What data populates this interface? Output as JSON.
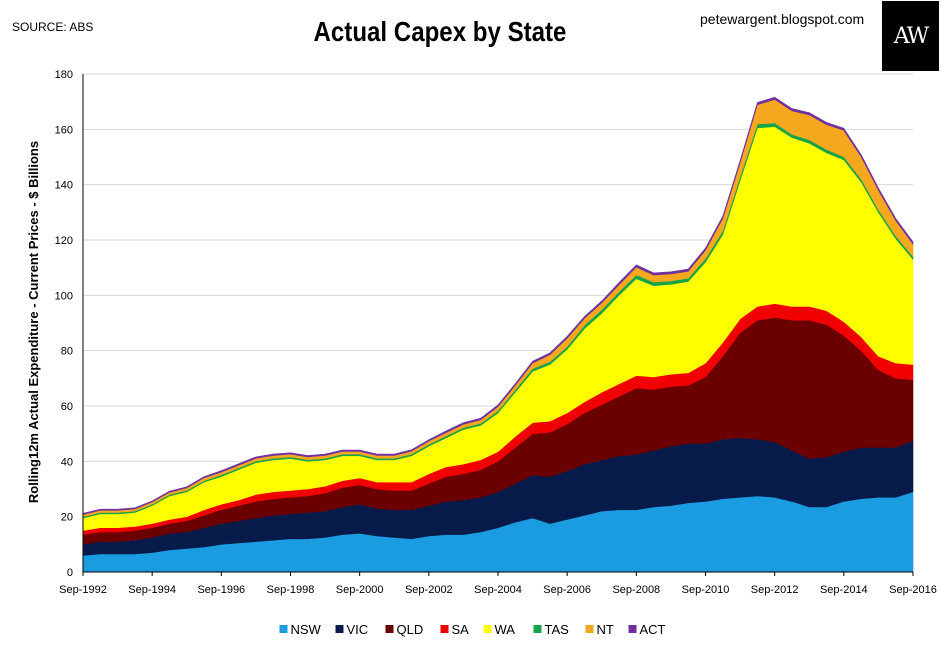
{
  "header": {
    "source": "SOURCE: ABS",
    "title": "Actual Capex by State",
    "blog": "petewargent.blogspot.com",
    "logo_text": "AW"
  },
  "chart_data": {
    "type": "area",
    "stacked": true,
    "title": "Actual Capex by State",
    "xlabel": "",
    "ylabel": "Rolling12m Actual Expenditure - Current Prices - $ Billions",
    "ylim": [
      0,
      180
    ],
    "yticks": [
      0,
      20,
      40,
      60,
      80,
      100,
      120,
      140,
      160,
      180
    ],
    "grid": true,
    "legend_position": "bottom",
    "x": [
      1992.67,
      1993.17,
      1993.67,
      1994.17,
      1994.67,
      1995.17,
      1995.67,
      1996.17,
      1996.67,
      1997.17,
      1997.67,
      1998.17,
      1998.67,
      1999.17,
      1999.67,
      2000.17,
      2000.67,
      2001.17,
      2001.67,
      2002.17,
      2002.67,
      2003.17,
      2003.67,
      2004.17,
      2004.67,
      2005.17,
      2005.67,
      2006.17,
      2006.67,
      2007.17,
      2007.67,
      2008.17,
      2008.67,
      2009.17,
      2009.67,
      2010.17,
      2010.67,
      2011.17,
      2011.67,
      2012.17,
      2012.67,
      2013.17,
      2013.67,
      2014.17,
      2014.67,
      2015.17,
      2015.67,
      2016.17,
      2016.67
    ],
    "x_ticks": [
      "Sep-1992",
      "Sep-1994",
      "Sep-1996",
      "Sep-1998",
      "Sep-2000",
      "Sep-2002",
      "Sep-2004",
      "Sep-2006",
      "Sep-2008",
      "Sep-2010",
      "Sep-2012",
      "Sep-2014",
      "Sep-2016"
    ],
    "series": [
      {
        "name": "NSW",
        "color": "#1B9BE0",
        "values": [
          6,
          6.5,
          6.5,
          6.5,
          7,
          8,
          8.5,
          9,
          10,
          10.5,
          11,
          11.5,
          12,
          12,
          12.5,
          13.5,
          14,
          13,
          12.5,
          12,
          13,
          13.5,
          13.5,
          14.5,
          16,
          18,
          19.5,
          17.5,
          19,
          20.5,
          22,
          22.5,
          22.5,
          23.5,
          24,
          25,
          25.5,
          26.5,
          27,
          27.5,
          27,
          25.5,
          23.5,
          23.5,
          25.5,
          26.5,
          27,
          27,
          29
        ]
      },
      {
        "name": "VIC",
        "color": "#071B4A",
        "values": [
          4,
          4.5,
          4.5,
          5,
          5.5,
          6,
          6,
          7,
          7.5,
          8,
          8.5,
          9,
          9,
          9.5,
          9.5,
          10,
          10.5,
          10,
          10,
          10.5,
          11,
          12,
          12.5,
          12.5,
          13,
          14,
          15.5,
          17,
          17.5,
          18.5,
          18.5,
          19.5,
          20,
          20.5,
          21.5,
          21.5,
          21,
          21.5,
          21.5,
          20.5,
          20,
          18.5,
          17.5,
          18,
          18,
          18.5,
          18,
          18,
          18.5
        ]
      },
      {
        "name": "QLD",
        "color": "#6B0000",
        "values": [
          3.5,
          3.5,
          3.5,
          3.5,
          3.5,
          3.5,
          4,
          4.5,
          5,
          5.5,
          6,
          6,
          6,
          6,
          6.5,
          7,
          7,
          7,
          7,
          7,
          8,
          9,
          9.5,
          10,
          11,
          13,
          15,
          16,
          17,
          18.5,
          20,
          21.5,
          24,
          22,
          21.5,
          21,
          24,
          30,
          38,
          43,
          45,
          47,
          50,
          48,
          42,
          35,
          28,
          25,
          22
        ]
      },
      {
        "name": "SA",
        "color": "#F00000",
        "values": [
          1.5,
          1.5,
          1.5,
          1.5,
          1.5,
          1.5,
          1.5,
          2,
          2,
          2,
          2.5,
          2.5,
          2.5,
          2.5,
          2.5,
          2.5,
          2.5,
          2.5,
          3,
          3,
          3.5,
          3.5,
          3.5,
          3.5,
          3.5,
          4,
          4,
          4,
          4,
          4,
          4.5,
          4.5,
          4.5,
          4.5,
          4.5,
          4.5,
          5,
          5,
          5,
          5,
          5,
          5,
          5,
          5,
          5,
          5,
          5,
          5.5,
          5.5
        ]
      },
      {
        "name": "WA",
        "color": "#FFFF00",
        "values": [
          4.5,
          5,
          5,
          5,
          6.5,
          8.5,
          9,
          10,
          10,
          11,
          11.5,
          11.5,
          11.5,
          10,
          9.5,
          9,
          8,
          8,
          8,
          9.5,
          10,
          10.5,
          12.5,
          12.5,
          14,
          16,
          18.5,
          20.5,
          23,
          26.5,
          28.5,
          32,
          35,
          33,
          32.5,
          33,
          36.5,
          39,
          50,
          64.5,
          64,
          61,
          59,
          57,
          58.5,
          56,
          52,
          45,
          38
        ]
      },
      {
        "name": "TAS",
        "color": "#16A34A",
        "values": [
          0.5,
          0.5,
          0.5,
          0.5,
          0.5,
          0.5,
          0.5,
          0.5,
          0.6,
          0.6,
          0.6,
          0.6,
          0.6,
          0.6,
          0.6,
          0.6,
          0.6,
          0.6,
          0.6,
          0.6,
          0.7,
          0.7,
          0.7,
          0.7,
          0.8,
          0.9,
          1,
          1,
          1,
          1.2,
          1.3,
          1.3,
          1.4,
          1.3,
          1.2,
          1.2,
          1.3,
          1.3,
          1.4,
          1.4,
          1.3,
          1.2,
          1.2,
          1.2,
          1.1,
          1.1,
          1,
          1,
          1
        ]
      },
      {
        "name": "NT",
        "color": "#F5A81D",
        "values": [
          0.8,
          0.8,
          0.8,
          0.8,
          0.8,
          0.8,
          0.9,
          1,
          1,
          1,
          1,
          1,
          1,
          1,
          1,
          1,
          1,
          1,
          1,
          1.1,
          1.1,
          1.2,
          1.2,
          1.3,
          1.5,
          1.6,
          2,
          2.5,
          3,
          2.5,
          2.5,
          2.5,
          2.8,
          2.5,
          2.5,
          2.5,
          3,
          4.5,
          5,
          7,
          8.5,
          8.5,
          9,
          9,
          9.5,
          8,
          7,
          5.5,
          4.5
        ]
      },
      {
        "name": "ACT",
        "color": "#7030A0",
        "values": [
          0.4,
          0.4,
          0.4,
          0.4,
          0.4,
          0.4,
          0.4,
          0.5,
          0.5,
          0.5,
          0.5,
          0.5,
          0.5,
          0.5,
          0.5,
          0.5,
          0.5,
          0.5,
          0.5,
          0.5,
          0.5,
          0.6,
          0.6,
          0.6,
          0.6,
          0.6,
          0.7,
          0.7,
          0.7,
          0.7,
          0.7,
          0.8,
          0.8,
          0.8,
          0.8,
          0.8,
          0.8,
          0.8,
          0.8,
          0.8,
          0.8,
          0.8,
          0.8,
          0.8,
          0.8,
          0.8,
          0.8,
          0.8,
          0.8
        ]
      }
    ]
  }
}
